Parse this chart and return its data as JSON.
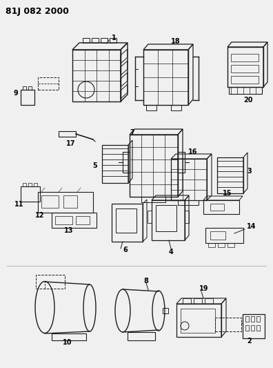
{
  "title": "81J 082 2000",
  "bg_color": "#f0f0f0",
  "line_color": "#1a1a1a",
  "text_color": "#000000",
  "figsize": [
    3.96,
    5.33
  ],
  "dpi": 100
}
